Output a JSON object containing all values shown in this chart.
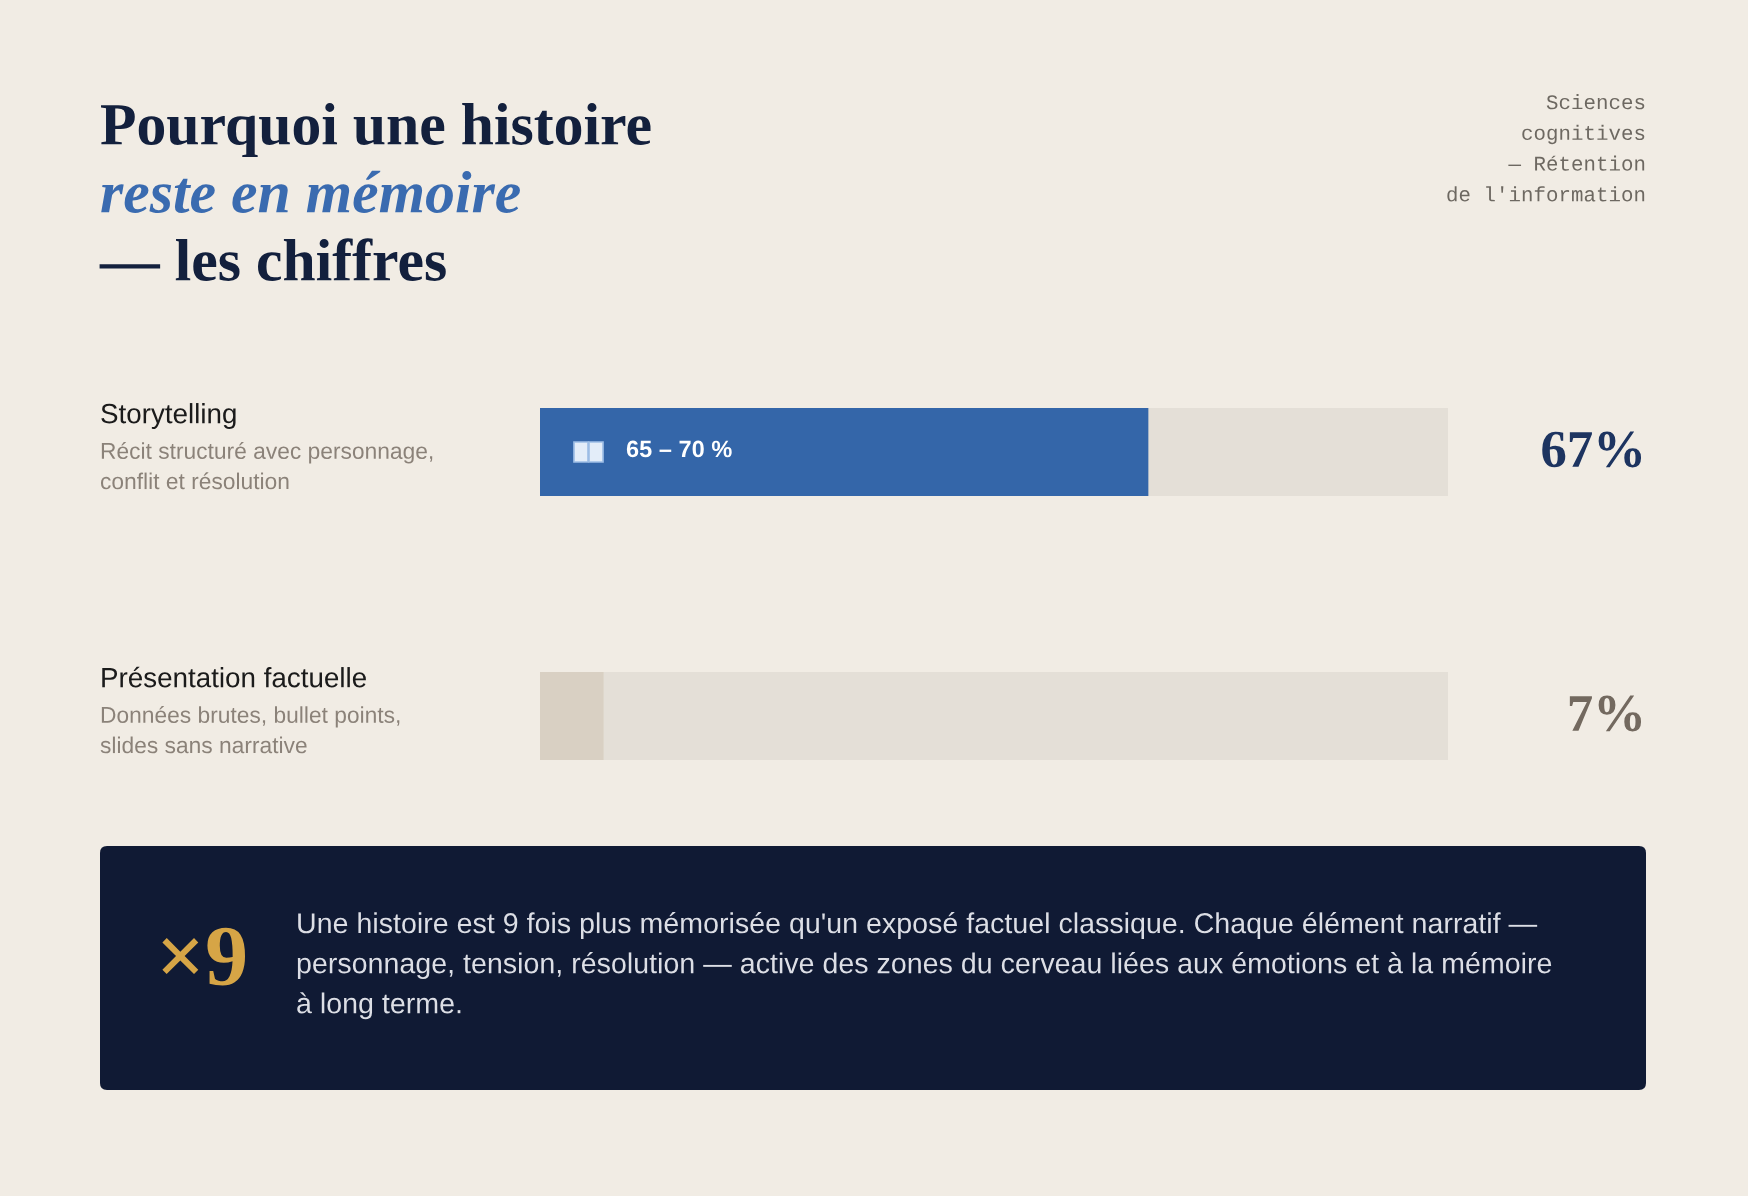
{
  "chart_data": {
    "type": "bar",
    "orientation": "horizontal",
    "title": "Pourquoi une histoire\nreste en mémoire\n— les chiffres",
    "subtitle": "Sciences\ncognitives\n— Rétention\nde l'information",
    "categories": [
      "Storytelling",
      "Présentation factuelle"
    ],
    "values": [
      67,
      7
    ],
    "colors": [
      "#3466a9",
      "#d9d0c3"
    ],
    "value_labels": [
      "67%",
      "7%"
    ],
    "xlim": [
      0,
      100
    ],
    "annotations": [
      "Récit structuré avec personnage,\nconflit et résolution",
      "Données brutes, bullet points,\nslides sans narrative",
      {
        "text": "65 – 70 %",
        "y": "Storytelling"
      },
      "×9",
      "Une histoire est 9 fois plus mémorisée qu'un exposé factuel classique. Chaque élément narratif —\npersonnage, tension, résolution — active des zones du cerveau liées aux émotions et à la mémoire\nà long terme."
    ]
  }
}
